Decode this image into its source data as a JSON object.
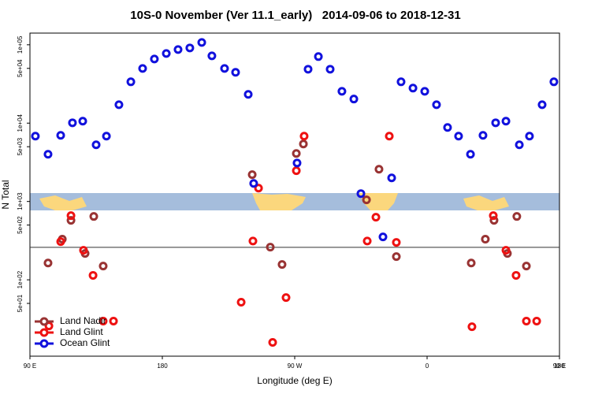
{
  "chart_data": {
    "type": "scatter",
    "title": "10S-0 November (Ver 11.1_early)   2014-09-06 to 2018-12-31",
    "xlabel": "Longitude (deg E)",
    "ylabel": "N Total",
    "ylog": true,
    "xlim": [
      90,
      450
    ],
    "ylim": [
      10.6,
      141000
    ],
    "xticks": [
      {
        "value": 90,
        "label": "90 E"
      },
      {
        "value": 180,
        "label": "180"
      },
      {
        "value": 270,
        "label": "90 W"
      },
      {
        "value": 360,
        "label": "0"
      },
      {
        "value": 450,
        "label": "90 E"
      }
    ],
    "xticks_extra": [
      {
        "value": 450,
        "label": "180"
      }
    ],
    "yticks": [
      {
        "value": 100000,
        "label": "1e+05"
      },
      {
        "value": 50000,
        "label": "5e+04"
      },
      {
        "value": 10000,
        "label": "1e+04"
      },
      {
        "value": 5000,
        "label": "5e+03"
      },
      {
        "value": 1000,
        "label": "1e+03"
      },
      {
        "value": 500,
        "label": "5e+02"
      },
      {
        "value": 100,
        "label": "1e+02"
      },
      {
        "value": 50,
        "label": "5e+01"
      }
    ],
    "reference_line": 260,
    "legend": "lower left",
    "series": [
      {
        "name": "Land Nadir",
        "color": "#993333",
        "x": [
          102.3,
          112,
          117.9,
          127.5,
          133.4,
          139.8,
          241.1,
          253.4,
          261.4,
          271.1,
          275.9,
          318.8,
          327.3,
          339.1,
          390,
          399.6,
          405.5,
          414.6,
          421,
          427.5
        ],
        "values": [
          164,
          330,
          574,
          217,
          644,
          150,
          2200,
          261,
          157,
          4100,
          5420,
          1050,
          2580,
          198,
          164,
          330,
          574,
          217,
          644,
          150
        ]
      },
      {
        "name": "Land Glint",
        "color": "#ee1111",
        "x": [
          102.9,
          110.9,
          117.9,
          126.4,
          132.9,
          139.8,
          146.8,
          233.6,
          241.6,
          245.4,
          255,
          264.1,
          271.1,
          276.4,
          319.3,
          325.2,
          334.3,
          339.1,
          390.5,
          405,
          413.6,
          420.5,
          427.5,
          434.5
        ],
        "values": [
          25.8,
          307,
          659,
          238,
          114,
          29.7,
          29.7,
          51.8,
          313,
          1480,
          15.9,
          59.4,
          2470,
          6820,
          313,
          630,
          6820,
          300,
          25.2,
          659,
          238,
          114,
          29.7,
          29.7
        ]
      },
      {
        "name": "Ocean Glint",
        "color": "#1111dd",
        "x": [
          93.7,
          102.3,
          110.9,
          118.9,
          125.9,
          135,
          142,
          150.5,
          158.6,
          166.6,
          174.6,
          182.7,
          190.7,
          198.7,
          206.8,
          213.7,
          222.3,
          229.8,
          238.4,
          242.1,
          271.6,
          279.1,
          286.1,
          294.1,
          302.1,
          310.2,
          315,
          330,
          335.9,
          342.3,
          350.4,
          358.4,
          366.4,
          373.9,
          381.4,
          389.5,
          398,
          406.6,
          413.6,
          422.7,
          429.6,
          438.2,
          446.2
        ],
        "values": [
          6820,
          4010,
          6980,
          10100,
          10600,
          5290,
          6820,
          17200,
          33700,
          49900,
          65900,
          77500,
          87000,
          91200,
          107000,
          72300,
          49900,
          44500,
          23300,
          1700,
          3100,
          48800,
          70700,
          48800,
          25500,
          20300,
          1260,
          353,
          2000,
          33700,
          28000,
          25500,
          17200,
          8810,
          6820,
          4010,
          6980,
          10100,
          10600,
          5290,
          6820,
          17200,
          33700
        ]
      }
    ]
  }
}
